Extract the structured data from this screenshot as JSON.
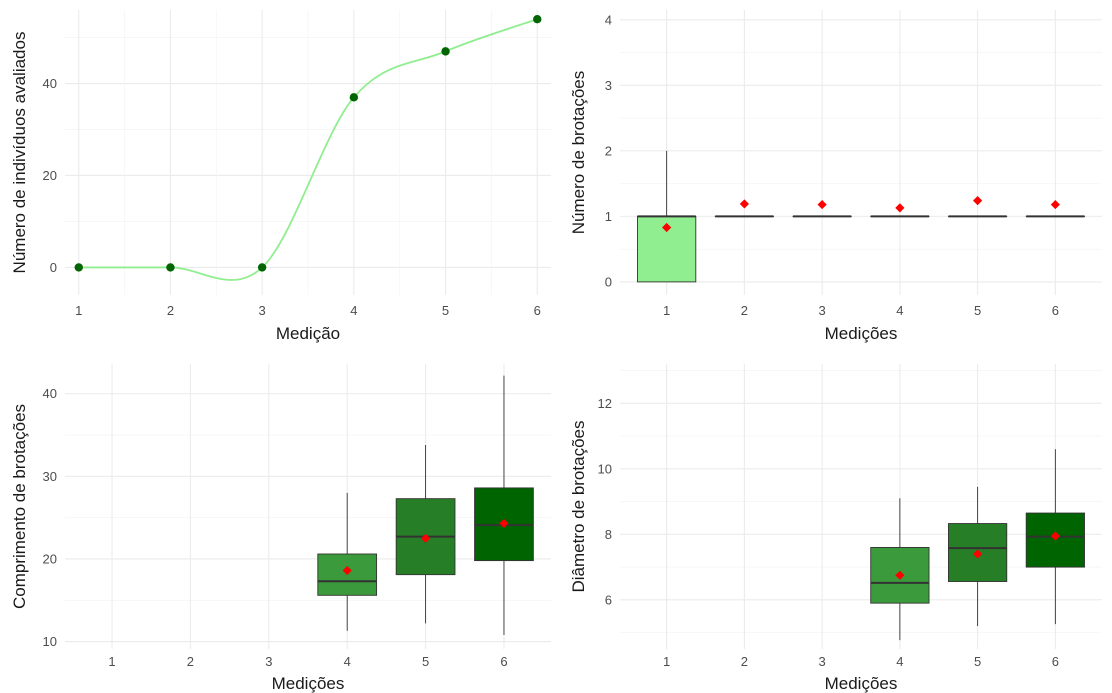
{
  "chart_data": [
    {
      "type": "line",
      "xlabel": "Medição",
      "ylabel": "Número de indivíduos avaliados",
      "x": [
        1,
        2,
        3,
        4,
        5,
        6
      ],
      "y": [
        0,
        0,
        0,
        37,
        47,
        54
      ],
      "xlim": [
        0.85,
        6.15
      ],
      "ylim": [
        -6,
        56
      ],
      "xticks": [
        1,
        2,
        3,
        4,
        5,
        6
      ],
      "yticks": [
        0,
        20,
        40
      ],
      "smooth": true,
      "line_color": "#90ee90",
      "point_color": "#006400",
      "grid": true
    },
    {
      "type": "box",
      "xlabel": "Medições",
      "ylabel": "Número de brotações",
      "categories": [
        "1",
        "2",
        "3",
        "4",
        "5",
        "6"
      ],
      "boxes": [
        {
          "min": 0,
          "q1": 0,
          "median": 1,
          "q3": 1,
          "max": 2,
          "mean": 0.83
        },
        {
          "min": 1,
          "q1": 1,
          "median": 1,
          "q3": 1,
          "max": 1,
          "mean": 1.19
        },
        {
          "min": 1,
          "q1": 1,
          "median": 1,
          "q3": 1,
          "max": 1,
          "mean": 1.18
        },
        {
          "min": 1,
          "q1": 1,
          "median": 1,
          "q3": 1,
          "max": 1,
          "mean": 1.13
        },
        {
          "min": 1,
          "q1": 1,
          "median": 1,
          "q3": 1,
          "max": 1,
          "mean": 1.24
        },
        {
          "min": 1,
          "q1": 1,
          "median": 1,
          "q3": 1,
          "max": 1,
          "mean": 1.18
        }
      ],
      "fill_colors": [
        "#90ee90",
        "#90ee90",
        "#90ee90",
        "#90ee90",
        "#90ee90",
        "#90ee90"
      ],
      "mean_color": "#ff0000",
      "ylim": [
        -0.2,
        4.15
      ],
      "yticks": [
        0,
        1,
        2,
        3,
        4
      ],
      "grid": true
    },
    {
      "type": "box",
      "xlabel": "Medições",
      "ylabel": "Comprimento de brotações",
      "categories": [
        "1",
        "2",
        "3",
        "4",
        "5",
        "6"
      ],
      "boxes": [
        null,
        null,
        null,
        {
          "min": 11.3,
          "q1": 15.6,
          "median": 17.3,
          "q3": 20.6,
          "max": 28,
          "mean": 18.6
        },
        {
          "min": 12.2,
          "q1": 18.1,
          "median": 22.7,
          "q3": 27.3,
          "max": 33.8,
          "mean": 22.5
        },
        {
          "min": 10.8,
          "q1": 19.8,
          "median": 24.1,
          "q3": 28.6,
          "max": 42.2,
          "mean": 24.3
        }
      ],
      "fill_colors": [
        "#3b9a3b",
        "#3b9a3b",
        "#3b9a3b",
        "#3b9a3b",
        "#267f26",
        "#006400"
      ],
      "mean_color": "#ff0000",
      "ylim": [
        9.1,
        43.6
      ],
      "yticks": [
        10,
        20,
        30,
        40
      ],
      "grid": true
    },
    {
      "type": "box",
      "xlabel": "Medições",
      "ylabel": "Diâmetro de brotações",
      "categories": [
        "1",
        "2",
        "3",
        "4",
        "5",
        "6"
      ],
      "boxes": [
        null,
        null,
        null,
        {
          "min": 4.77,
          "q1": 5.9,
          "median": 6.52,
          "q3": 7.6,
          "max": 9.1,
          "mean": 6.75
        },
        {
          "min": 5.2,
          "q1": 6.56,
          "median": 7.58,
          "q3": 8.33,
          "max": 9.45,
          "mean": 7.4
        },
        {
          "min": 5.26,
          "q1": 7.0,
          "median": 7.93,
          "q3": 8.65,
          "max": 10.6,
          "mean": 7.95
        }
      ],
      "fill_colors": [
        "#3b9a3b",
        "#3b9a3b",
        "#3b9a3b",
        "#3b9a3b",
        "#267f26",
        "#006400"
      ],
      "mean_color": "#ff0000",
      "ylim": [
        4.5,
        13.2
      ],
      "yticks": [
        6,
        8,
        10,
        12
      ],
      "grid": true
    }
  ]
}
